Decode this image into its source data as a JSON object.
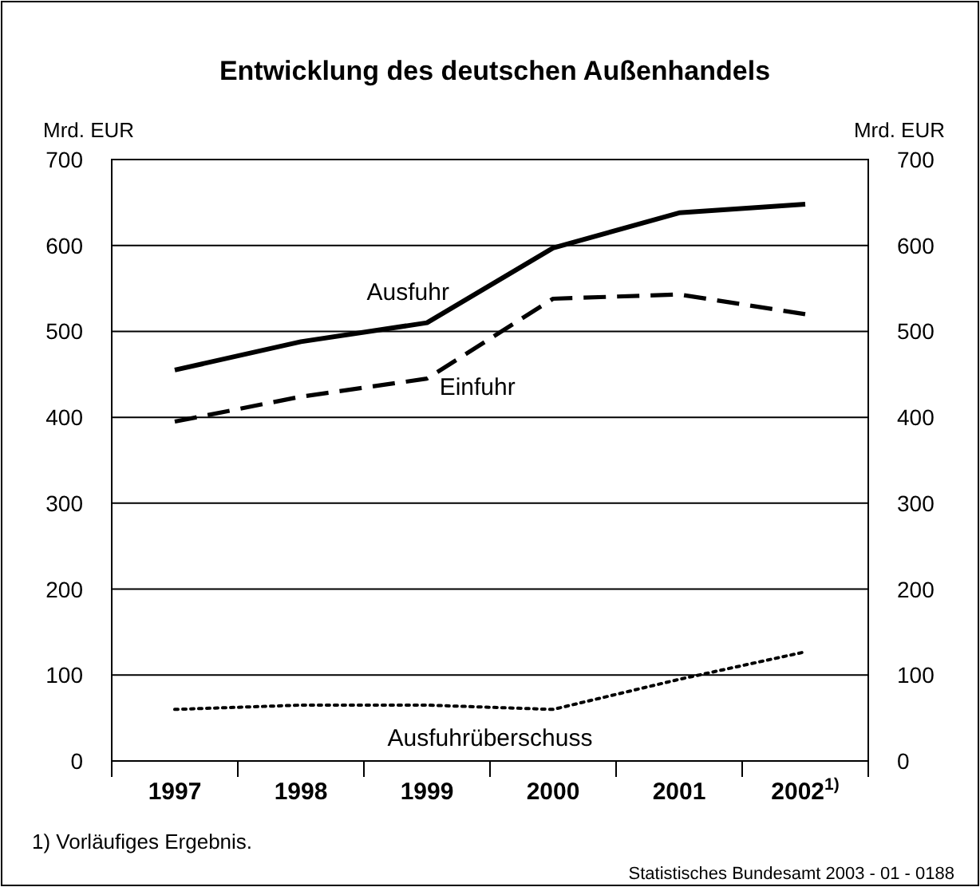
{
  "chart_data": {
    "type": "line",
    "title": "Entwicklung des deutschen Außenhandels",
    "ylabel": "Mrd. EUR",
    "y2label": "Mrd. EUR",
    "categories": [
      "1997",
      "1998",
      "1999",
      "2000",
      "2001",
      "2002$^{1)}$"
    ],
    "ylim": [
      0,
      700
    ],
    "yticks": [
      0,
      100,
      200,
      300,
      400,
      500,
      600,
      700
    ],
    "y2lim": [
      0,
      700
    ],
    "y2ticks": [
      0,
      100,
      200,
      300,
      400,
      500,
      600,
      700
    ],
    "grid": "y",
    "series": [
      {
        "name": "Ausfuhr",
        "color": "#000000",
        "line_style": "solid",
        "values": [
          455,
          488,
          510,
          597,
          638,
          648
        ]
      },
      {
        "name": "Einfuhr",
        "color": "#000000",
        "line_style": "dashed",
        "values": [
          395,
          424,
          445,
          538,
          543,
          520
        ]
      },
      {
        "name": "Ausfuhrüberschuss",
        "color": "#000000",
        "line_style": "dotted",
        "values": [
          60,
          65,
          65,
          60,
          95,
          127
        ]
      }
    ],
    "annotations": [
      "1) Vorläufiges Ergebnis.",
      "Statistisches Bundesamt 2003 - 01 - 0188"
    ]
  }
}
